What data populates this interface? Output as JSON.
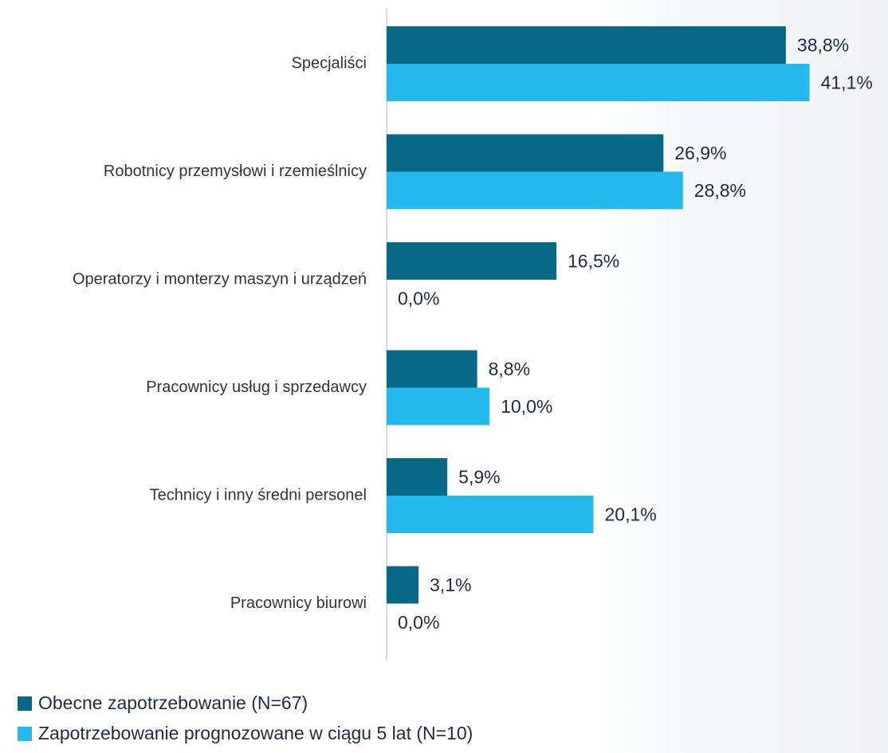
{
  "chart_data": {
    "type": "bar",
    "orientation": "horizontal",
    "categories": [
      "Specjaliści",
      "Robotnicy przemysłowi i rzemieślnicy",
      "Operatorzy i monterzy maszyn i urządzeń",
      "Pracownicy usług i sprzedawcy",
      "Technicy i inny średni personel",
      "Pracownicy biurowi"
    ],
    "series": [
      {
        "name": "Obecne zapotrzebowanie (N=67)",
        "color": "#086987",
        "values": [
          38.8,
          26.9,
          16.5,
          8.8,
          5.9,
          3.1
        ],
        "value_labels": [
          "38,8%",
          "26,9%",
          "16,5%",
          "8,8%",
          "5,9%",
          "3,1%"
        ]
      },
      {
        "name": "Zapotrzebowanie prognozowane w ciągu 5 lat (N=10)",
        "color": "#24b8ec",
        "values": [
          41.1,
          28.8,
          0,
          10.0,
          20.1,
          0
        ],
        "value_labels": [
          "41,1%",
          "28,8%",
          "0,0%",
          "10,0%",
          "20,1%",
          "0,0%"
        ]
      }
    ],
    "legend": "bottom-left"
  }
}
